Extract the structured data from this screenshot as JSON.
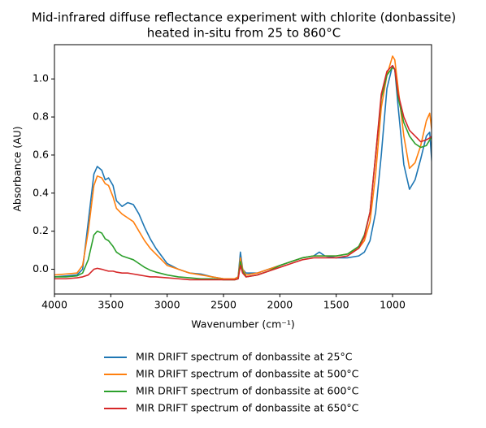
{
  "chart_data": {
    "type": "line",
    "title": [
      "Mid-infrared diffuse reflectance experiment with chlorite (donbassite)",
      "heated in-situ from 25 to 860°C"
    ],
    "xlabel": "Wavenumber (cm⁻¹)",
    "ylabel": "Absorbance (AU)",
    "x": [
      4000,
      3900,
      3800,
      3750,
      3700,
      3650,
      3620,
      3580,
      3550,
      3520,
      3480,
      3450,
      3400,
      3350,
      3300,
      3250,
      3200,
      3150,
      3100,
      3000,
      2900,
      2800,
      2700,
      2600,
      2500,
      2400,
      2370,
      2350,
      2330,
      2300,
      2200,
      2100,
      2000,
      1900,
      1800,
      1700,
      1650,
      1600,
      1500,
      1400,
      1300,
      1250,
      1200,
      1150,
      1100,
      1050,
      1000,
      980,
      950,
      900,
      850,
      800,
      750,
      700,
      670,
      650
    ],
    "series": [
      {
        "name": "MIR DRIFT spectrum of donbassite at 25°C",
        "color": "#1f77b4",
        "values": [
          -0.04,
          -0.035,
          -0.03,
          0.0,
          0.25,
          0.5,
          0.54,
          0.52,
          0.47,
          0.48,
          0.44,
          0.36,
          0.33,
          0.35,
          0.34,
          0.29,
          0.22,
          0.16,
          0.11,
          0.03,
          0.0,
          -0.02,
          -0.025,
          -0.04,
          -0.05,
          -0.05,
          -0.04,
          0.09,
          0.0,
          -0.02,
          -0.02,
          0.0,
          0.02,
          0.04,
          0.06,
          0.07,
          0.09,
          0.07,
          0.06,
          0.06,
          0.07,
          0.09,
          0.15,
          0.3,
          0.6,
          0.95,
          1.07,
          1.05,
          0.85,
          0.55,
          0.42,
          0.47,
          0.58,
          0.7,
          0.72,
          0.55
        ]
      },
      {
        "name": "MIR DRIFT spectrum of donbassite at 500°C",
        "color": "#ff7f0e",
        "values": [
          -0.03,
          -0.025,
          -0.02,
          0.02,
          0.2,
          0.44,
          0.49,
          0.48,
          0.45,
          0.44,
          0.38,
          0.32,
          0.29,
          0.27,
          0.25,
          0.2,
          0.15,
          0.11,
          0.08,
          0.02,
          0.0,
          -0.02,
          -0.03,
          -0.04,
          -0.05,
          -0.05,
          -0.04,
          0.06,
          0.0,
          -0.03,
          -0.02,
          0.0,
          0.02,
          0.04,
          0.06,
          0.07,
          0.07,
          0.07,
          0.07,
          0.08,
          0.11,
          0.15,
          0.25,
          0.5,
          0.85,
          1.02,
          1.12,
          1.1,
          0.95,
          0.7,
          0.53,
          0.56,
          0.65,
          0.78,
          0.82,
          0.72
        ]
      },
      {
        "name": "MIR DRIFT spectrum of donbassite at 600°C",
        "color": "#2ca02c",
        "values": [
          -0.04,
          -0.04,
          -0.035,
          -0.02,
          0.05,
          0.18,
          0.2,
          0.19,
          0.16,
          0.15,
          0.12,
          0.09,
          0.07,
          0.06,
          0.05,
          0.03,
          0.01,
          -0.005,
          -0.015,
          -0.03,
          -0.04,
          -0.045,
          -0.05,
          -0.05,
          -0.055,
          -0.055,
          -0.05,
          0.04,
          -0.01,
          -0.04,
          -0.03,
          -0.01,
          0.02,
          0.04,
          0.06,
          0.07,
          0.07,
          0.07,
          0.07,
          0.08,
          0.12,
          0.18,
          0.3,
          0.6,
          0.9,
          1.02,
          1.06,
          1.05,
          0.9,
          0.77,
          0.7,
          0.66,
          0.64,
          0.65,
          0.68,
          0.7
        ]
      },
      {
        "name": "MIR DRIFT spectrum of donbassite at 650°C",
        "color": "#d62728",
        "values": [
          -0.05,
          -0.05,
          -0.045,
          -0.04,
          -0.03,
          0.0,
          0.005,
          0.0,
          -0.005,
          -0.01,
          -0.01,
          -0.015,
          -0.02,
          -0.02,
          -0.025,
          -0.03,
          -0.035,
          -0.04,
          -0.04,
          -0.045,
          -0.05,
          -0.055,
          -0.055,
          -0.055,
          -0.055,
          -0.055,
          -0.05,
          0.02,
          -0.02,
          -0.04,
          -0.03,
          -0.01,
          0.01,
          0.03,
          0.05,
          0.06,
          0.06,
          0.06,
          0.06,
          0.07,
          0.11,
          0.17,
          0.3,
          0.6,
          0.92,
          1.04,
          1.07,
          1.05,
          0.92,
          0.8,
          0.73,
          0.7,
          0.67,
          0.68,
          0.69,
          0.7
        ]
      }
    ],
    "xlim": [
      4000,
      654
    ],
    "ylim": [
      -0.13,
      1.18
    ],
    "xticks": [
      4000,
      3500,
      3000,
      2500,
      2000,
      1500,
      1000
    ],
    "yticks": [
      {
        "value": 0,
        "label": "0.0"
      },
      {
        "value": 0.2,
        "label": "0.2"
      },
      {
        "value": 0.4,
        "label": "0.4"
      },
      {
        "value": 0.6,
        "label": "0.6"
      },
      {
        "value": 0.8,
        "label": "0.8"
      },
      {
        "value": 1,
        "label": "1.0"
      }
    ],
    "legend": "below"
  }
}
